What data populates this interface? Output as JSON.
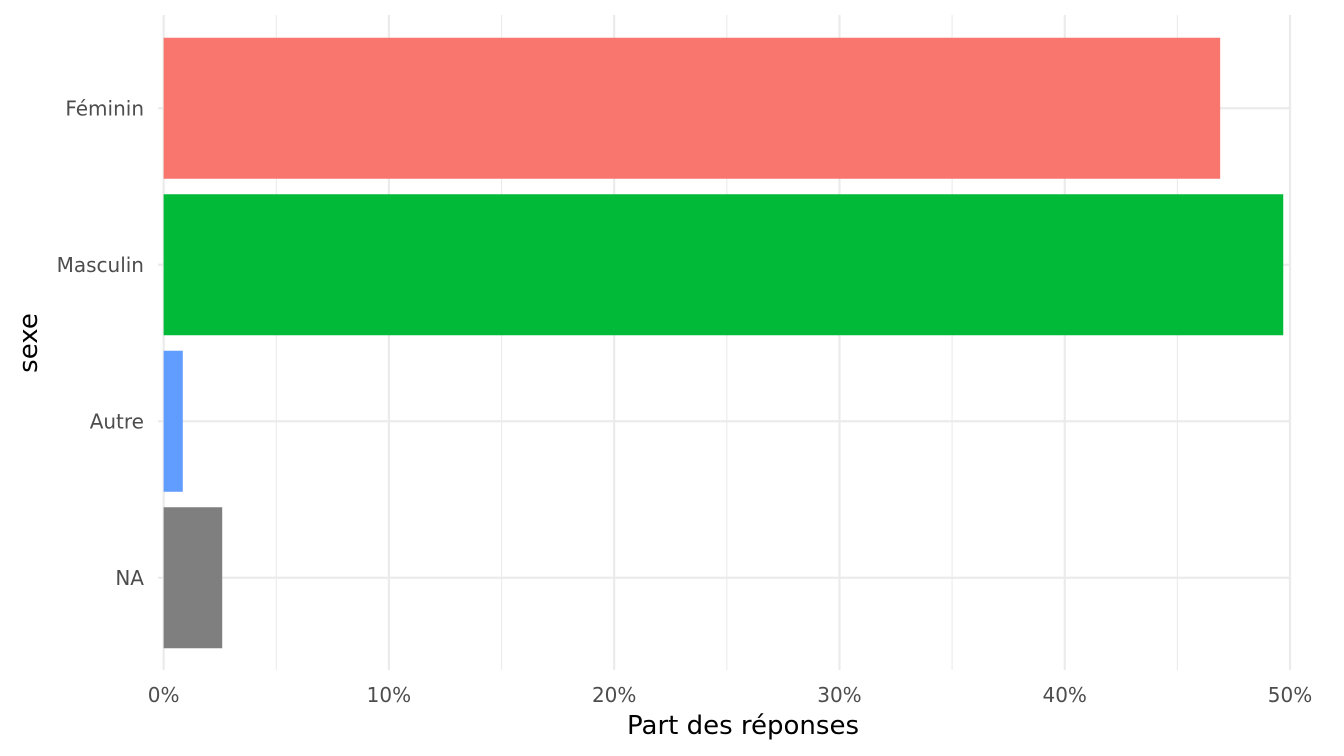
{
  "chart_data": {
    "type": "bar",
    "orientation": "horizontal",
    "categories": [
      "Féminin",
      "Masculin",
      "Autre",
      "NA"
    ],
    "values": [
      0.469,
      0.497,
      0.0085,
      0.026
    ],
    "colors": [
      "#F8766D",
      "#00BA38",
      "#619CFF",
      "#7F7F7F"
    ],
    "xlabel": "Part des réponses",
    "ylabel": "sexe",
    "xlim": [
      -0.0025,
      0.5
    ],
    "xticks": [
      0,
      0.1,
      0.2,
      0.3,
      0.4,
      0.5
    ],
    "xtick_labels": [
      "0%",
      "10%",
      "20%",
      "30%",
      "40%",
      "50%"
    ],
    "grid": true,
    "legend": "none"
  }
}
